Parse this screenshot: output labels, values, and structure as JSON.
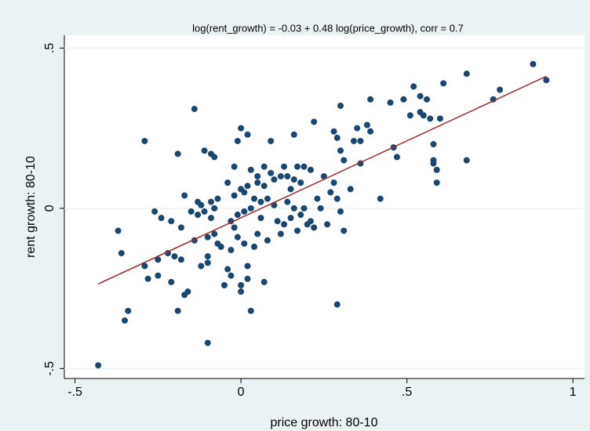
{
  "chart_data": {
    "type": "scatter",
    "title": "log(rent_growth) = -0.03 + 0.48 log(price_growth), corr = 0.7",
    "x_label": "price growth: 80-10",
    "y_label": "rent growth: 80-10",
    "xlim": [
      -0.532,
      1.035
    ],
    "ylim": [
      -0.531,
      0.54
    ],
    "xticks": [
      {
        "value": -0.5,
        "label": "-.5"
      },
      0,
      {
        "value": 0.5,
        "label": ".5"
      },
      1
    ],
    "yticks": [
      {
        "value": -0.5,
        "label": "-.5"
      },
      0,
      {
        "value": 0.5,
        "label": ".5"
      }
    ],
    "grid": true,
    "series": [
      {
        "color": "#1a476f",
        "x": [
          -0.43,
          -0.37,
          -0.36,
          -0.35,
          -0.34,
          -0.29,
          -0.29,
          -0.28,
          -0.26,
          -0.25,
          -0.25,
          -0.24,
          -0.22,
          -0.21,
          -0.21,
          -0.2,
          -0.19,
          -0.19,
          -0.18,
          -0.18,
          -0.17,
          -0.17,
          -0.16,
          -0.15,
          -0.14,
          -0.14,
          -0.13,
          -0.13,
          -0.12,
          -0.12,
          -0.11,
          -0.11,
          -0.1,
          -0.1,
          -0.1,
          -0.1,
          -0.09,
          -0.09,
          -0.09,
          -0.08,
          -0.08,
          -0.08,
          -0.07,
          -0.07,
          -0.06,
          -0.05,
          -0.04,
          -0.04,
          -0.03,
          -0.03,
          -0.03,
          -0.02,
          -0.02,
          -0.02,
          -0.01,
          -0.01,
          -0.01,
          0,
          0,
          0,
          0,
          0.01,
          0.01,
          0.01,
          0.02,
          0.02,
          0.02,
          0.02,
          0.03,
          0.03,
          0.03,
          0.04,
          0.04,
          0.05,
          0.05,
          0.05,
          0.06,
          0.06,
          0.07,
          0.07,
          0.07,
          0.08,
          0.08,
          0.09,
          0.09,
          0.1,
          0.1,
          0.11,
          0.12,
          0.12,
          0.13,
          0.13,
          0.14,
          0.14,
          0.15,
          0.15,
          0.16,
          0.16,
          0.16,
          0.17,
          0.17,
          0.18,
          0.18,
          0.19,
          0.19,
          0.2,
          0.21,
          0.21,
          0.22,
          0.22,
          0.23,
          0.24,
          0.25,
          0.26,
          0.27,
          0.28,
          0.28,
          0.29,
          0.29,
          0.29,
          0.3,
          0.3,
          0.3,
          0.31,
          0.31,
          0.33,
          0.34,
          0.35,
          0.36,
          0.36,
          0.38,
          0.39,
          0.39,
          0.42,
          0.45,
          0.46,
          0.47,
          0.49,
          0.51,
          0.52,
          0.54,
          0.54,
          0.55,
          0.56,
          0.57,
          0.58,
          0.58,
          0.58,
          0.59,
          0.59,
          0.6,
          0.61,
          0.68,
          0.68,
          0.76,
          0.78,
          0.88,
          0.92
        ],
        "values": [
          -0.49,
          -0.07,
          -0.14,
          -0.35,
          -0.32,
          0.21,
          -0.18,
          -0.22,
          -0.01,
          -0.16,
          -0.21,
          -0.03,
          -0.14,
          -0.04,
          -0.23,
          -0.15,
          -0.32,
          0.17,
          -0.06,
          -0.16,
          0.04,
          -0.27,
          -0.26,
          -0.01,
          0.31,
          -0.1,
          0.02,
          -0.02,
          0.01,
          -0.18,
          0.18,
          -0.01,
          -0.15,
          -0.17,
          -0.09,
          -0.42,
          0.02,
          0.17,
          -0.03,
          0.16,
          0,
          -0.08,
          0.03,
          -0.11,
          -0.12,
          -0.24,
          0.08,
          -0.19,
          -0.04,
          -0.13,
          -0.21,
          0.13,
          0.04,
          -0.06,
          0.21,
          -0.02,
          -0.09,
          -0.24,
          0.25,
          0.06,
          -0.26,
          0.05,
          -0.01,
          -0.11,
          0.23,
          -0.18,
          0.07,
          -0.22,
          0.12,
          -0.32,
          0,
          0.03,
          -0.12,
          0.08,
          0.1,
          -0.08,
          0.02,
          -0.03,
          0.13,
          0.07,
          -0.23,
          0.03,
          -0.1,
          0.21,
          0.11,
          0.09,
          0.01,
          -0.04,
          0.1,
          -0.08,
          0.13,
          -0.05,
          0.1,
          0.02,
          0.06,
          -0.03,
          0.23,
          0.09,
          0,
          0.13,
          -0.07,
          0.08,
          -0.02,
          0.13,
          0,
          -0.05,
          0.12,
          -0.04,
          0.27,
          -0.06,
          0.03,
          0,
          0.1,
          -0.05,
          0.05,
          0.24,
          0.08,
          0.22,
          0.03,
          -0.3,
          0.32,
          0.18,
          -0.01,
          0.15,
          -0.07,
          0.06,
          0.21,
          0.25,
          0.21,
          0.14,
          0.26,
          0.24,
          0.34,
          0.03,
          0.33,
          0.19,
          0.16,
          0.34,
          0.29,
          0.38,
          0.3,
          0.35,
          0.29,
          0.34,
          0.28,
          0.2,
          0.15,
          0.14,
          0.12,
          0.08,
          0.28,
          0.39,
          0.42,
          0.15,
          0.34,
          0.37,
          0.45,
          0.4
        ]
      },
      {
        "color": "#9e2a2b",
        "mode": "line",
        "x": [
          -0.43,
          0.92
        ],
        "values": [
          -0.236,
          0.412
        ]
      }
    ]
  }
}
